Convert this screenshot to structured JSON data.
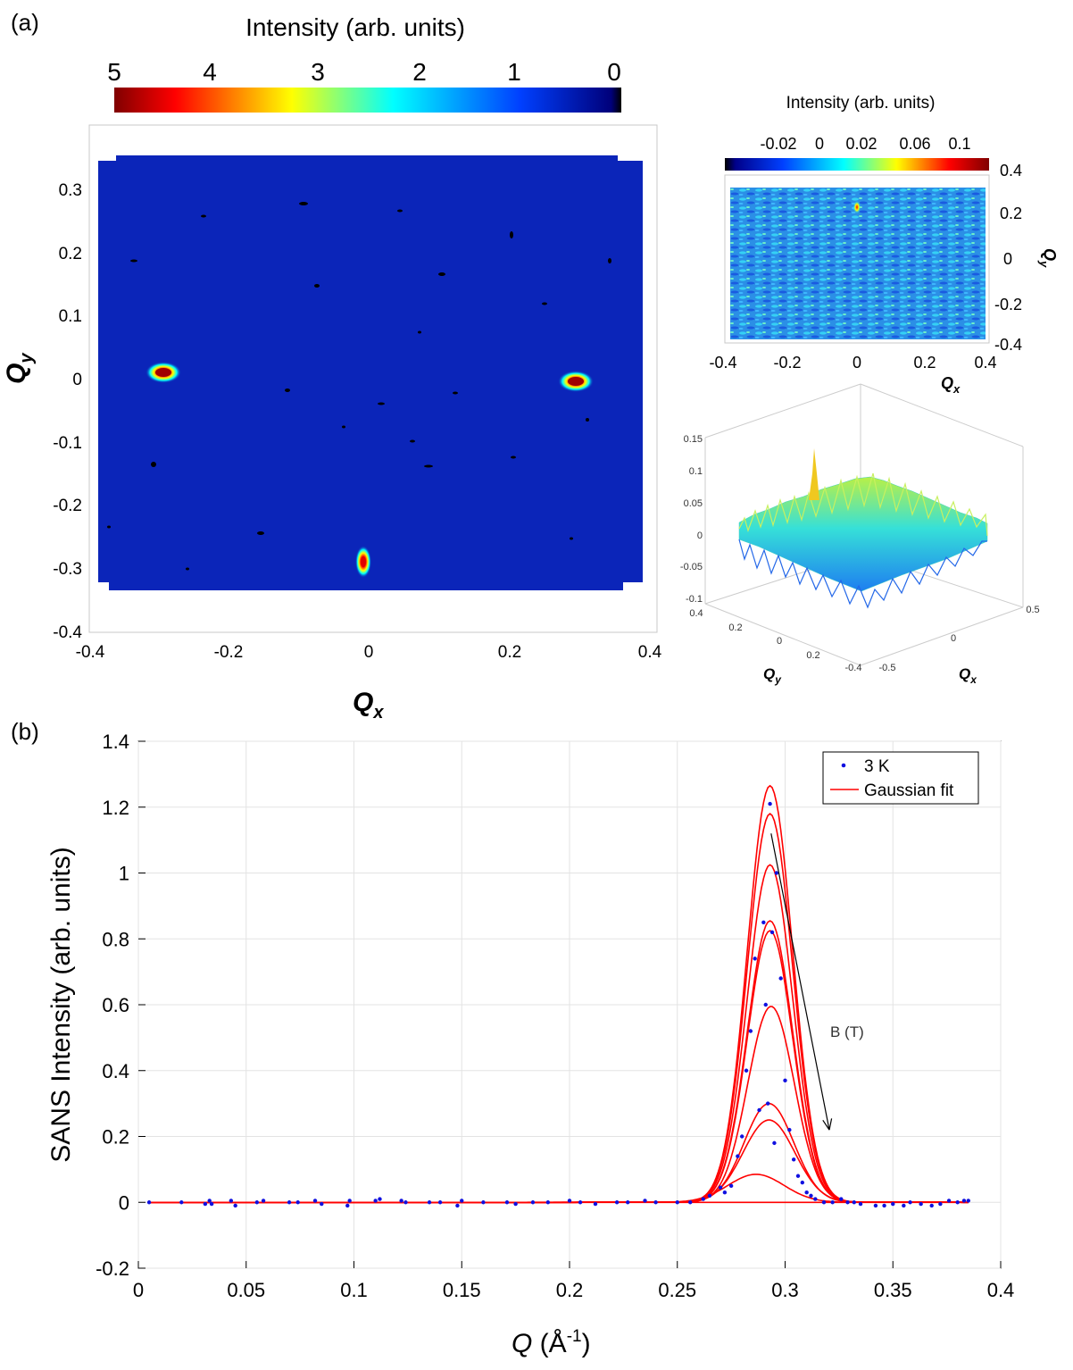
{
  "panel_labels": {
    "a": "(a)",
    "b": "(b)"
  },
  "colors": {
    "map_background": "#0a23b4",
    "hotspot": "#a00000",
    "fit_line": "#ff0000",
    "data_point": "#1010e0",
    "arrow": "#000000"
  },
  "chart_data": [
    {
      "type": "heatmap",
      "title": "",
      "colorbar": {
        "label": "Intensity (arb. units)",
        "tick_labels": [
          "5",
          "4",
          "3",
          "2",
          "1",
          "0"
        ],
        "range": [
          5,
          0
        ],
        "colormap": "jet"
      },
      "xlabel": "Q_x",
      "ylabel": "Q_y",
      "xlim": [
        -0.4,
        0.4
      ],
      "ylim": [
        -0.4,
        0.35
      ],
      "x_ticks": [
        "-0.4",
        "-0.2",
        "0",
        "0.2",
        "0.4"
      ],
      "y_ticks": [
        "0.3",
        "0.2",
        "0.1",
        "0",
        "-0.1",
        "-0.2",
        "-0.3",
        "-0.4"
      ],
      "background_intensity": 0.3,
      "peaks": [
        {
          "qx": -0.29,
          "qy": 0.01,
          "intensity": 5
        },
        {
          "qx": 0.29,
          "qy": -0.005,
          "intensity": 5
        },
        {
          "qx": -0.005,
          "qy": -0.29,
          "intensity": 4
        }
      ]
    },
    {
      "type": "heatmap",
      "title": "",
      "colorbar": {
        "label": "Intensity (arb. units)",
        "tick_labels": [
          "-0.02",
          "0",
          "0.02",
          "0.06",
          "0.1"
        ],
        "colormap": "jet"
      },
      "xlabel": "Q_x",
      "ylabel": "Q_y",
      "xlim": [
        -0.4,
        0.4
      ],
      "ylim": [
        -0.4,
        0.4
      ],
      "x_ticks": [
        "-0.4",
        "-0.2",
        "0",
        "0.2",
        "0.4"
      ],
      "y_ticks": [
        "0.4",
        "0.2",
        "0",
        "-0.2",
        "-0.4"
      ],
      "peaks": [
        {
          "qx": 0.0,
          "qy": 0.23,
          "intensity": 0.1
        }
      ]
    },
    {
      "type": "surface",
      "title": "",
      "xlabel": "Q_y",
      "ylabel": "Q_x",
      "z_ticks": [
        "0.15",
        "0.1",
        "0.05",
        "0",
        "-0.05",
        "-0.1"
      ],
      "qy_ticks": [
        "0.4",
        "0.2",
        "0",
        "0.2",
        "-0.4"
      ],
      "qx_ticks": [
        "0.5",
        "0",
        "-0.5"
      ],
      "zlim": [
        -0.1,
        0.15
      ],
      "peak": {
        "qx": 0.0,
        "qy": 0.23,
        "z": 0.12
      }
    },
    {
      "type": "scatter",
      "title": "",
      "xlabel": "Q (Å",
      "xlabel_sup": "-1",
      "xlabel_close": ")",
      "ylabel": "SANS Intensity (arb. units)",
      "xlim": [
        0,
        0.4
      ],
      "ylim": [
        -0.2,
        1.4
      ],
      "x_ticks": [
        0,
        0.05,
        0.1,
        0.15,
        0.2,
        0.25,
        0.3,
        0.35,
        0.4
      ],
      "x_tick_labels": [
        "0",
        "0.05",
        "0.1",
        "0.15",
        "0.2",
        "0.25",
        "0.3",
        "0.35",
        "0.4"
      ],
      "y_ticks": [
        -0.2,
        0,
        0.2,
        0.4,
        0.6,
        0.8,
        1,
        1.2,
        1.4
      ],
      "y_tick_labels": [
        "-0.2",
        "0",
        "0.2",
        "0.4",
        "0.6",
        "0.8",
        "1",
        "1.2",
        "1.4"
      ],
      "grid": true,
      "legend": {
        "position": "top-right",
        "entries": [
          "3 K",
          "Gaussian fit"
        ]
      },
      "annotation": {
        "text": "B (T)",
        "arrow_from": [
          0.2935,
          1.12
        ],
        "arrow_to": [
          0.3205,
          0.22
        ]
      },
      "fits": [
        {
          "amplitude": 1.265,
          "center": 0.293,
          "sigma": 0.0105
        },
        {
          "amplitude": 1.18,
          "center": 0.293,
          "sigma": 0.0105
        },
        {
          "amplitude": 1.025,
          "center": 0.293,
          "sigma": 0.0105
        },
        {
          "amplitude": 0.855,
          "center": 0.293,
          "sigma": 0.0105
        },
        {
          "amplitude": 0.825,
          "center": 0.293,
          "sigma": 0.0105
        },
        {
          "amplitude": 0.595,
          "center": 0.2935,
          "sigma": 0.0108
        },
        {
          "amplitude": 0.3,
          "center": 0.2925,
          "sigma": 0.0115
        },
        {
          "amplitude": 0.25,
          "center": 0.2925,
          "sigma": 0.012
        },
        {
          "amplitude": 0.085,
          "center": 0.2865,
          "sigma": 0.013
        },
        {
          "amplitude": 0.0,
          "center": 0.29,
          "sigma": 0.012
        }
      ],
      "series": [
        {
          "name": "3 K",
          "points": [
            [
              0.005,
              0.0
            ],
            [
              0.02,
              0.0
            ],
            [
              0.031,
              -0.005
            ],
            [
              0.033,
              0.005
            ],
            [
              0.034,
              -0.005
            ],
            [
              0.043,
              0.005
            ],
            [
              0.045,
              -0.01
            ],
            [
              0.055,
              0.0
            ],
            [
              0.058,
              0.005
            ],
            [
              0.07,
              0.0
            ],
            [
              0.074,
              0.0
            ],
            [
              0.082,
              0.005
            ],
            [
              0.085,
              -0.005
            ],
            [
              0.097,
              -0.01
            ],
            [
              0.098,
              0.005
            ],
            [
              0.11,
              0.005
            ],
            [
              0.112,
              0.01
            ],
            [
              0.122,
              0.005
            ],
            [
              0.124,
              0.0
            ],
            [
              0.135,
              0.0
            ],
            [
              0.14,
              0.0
            ],
            [
              0.148,
              -0.01
            ],
            [
              0.15,
              0.005
            ],
            [
              0.16,
              0.0
            ],
            [
              0.171,
              0.0
            ],
            [
              0.175,
              -0.005
            ],
            [
              0.183,
              0.0
            ],
            [
              0.19,
              0.0
            ],
            [
              0.2,
              0.005
            ],
            [
              0.205,
              0.0
            ],
            [
              0.212,
              -0.005
            ],
            [
              0.222,
              0.0
            ],
            [
              0.227,
              0.0
            ],
            [
              0.235,
              0.005
            ],
            [
              0.24,
              0.0
            ],
            [
              0.25,
              0.0
            ],
            [
              0.256,
              0.0
            ],
            [
              0.262,
              0.01
            ],
            [
              0.265,
              0.02
            ],
            [
              0.27,
              0.045
            ],
            [
              0.272,
              0.03
            ],
            [
              0.275,
              0.05
            ],
            [
              0.278,
              0.14
            ],
            [
              0.28,
              0.2
            ],
            [
              0.282,
              0.4
            ],
            [
              0.284,
              0.52
            ],
            [
              0.286,
              0.74
            ],
            [
              0.288,
              0.28
            ],
            [
              0.29,
              0.85
            ],
            [
              0.291,
              0.6
            ],
            [
              0.292,
              0.3
            ],
            [
              0.293,
              1.21
            ],
            [
              0.294,
              0.82
            ],
            [
              0.295,
              0.18
            ],
            [
              0.296,
              1.0
            ],
            [
              0.298,
              0.68
            ],
            [
              0.3,
              0.37
            ],
            [
              0.302,
              0.22
            ],
            [
              0.304,
              0.13
            ],
            [
              0.306,
              0.08
            ],
            [
              0.308,
              0.06
            ],
            [
              0.31,
              0.03
            ],
            [
              0.312,
              0.02
            ],
            [
              0.314,
              0.01
            ],
            [
              0.318,
              0.0
            ],
            [
              0.322,
              0.0
            ],
            [
              0.326,
              0.01
            ],
            [
              0.329,
              0.0
            ],
            [
              0.332,
              0.0
            ],
            [
              0.335,
              -0.005
            ],
            [
              0.342,
              -0.01
            ],
            [
              0.346,
              -0.01
            ],
            [
              0.35,
              -0.005
            ],
            [
              0.355,
              -0.01
            ],
            [
              0.358,
              0.0
            ],
            [
              0.363,
              -0.005
            ],
            [
              0.368,
              -0.01
            ],
            [
              0.372,
              -0.005
            ],
            [
              0.376,
              0.005
            ],
            [
              0.38,
              0.0
            ],
            [
              0.383,
              0.005
            ],
            [
              0.385,
              0.005
            ]
          ]
        }
      ]
    }
  ]
}
